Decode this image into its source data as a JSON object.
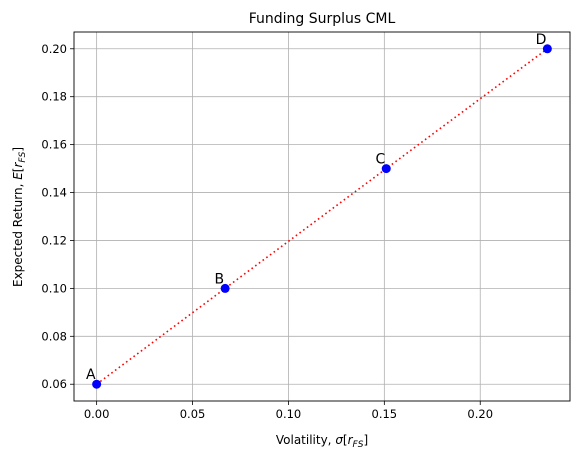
{
  "chart_data": {
    "type": "scatter",
    "title": "Funding Surplus CML",
    "xlabel": {
      "prefix": "Volatility, ",
      "sigma": "σ",
      "open": "[",
      "r": "r",
      "sub": "FS",
      "close": "]"
    },
    "ylabel": {
      "prefix": "Expected Return, ",
      "E": "E",
      "open": "[",
      "r": "r",
      "sub": "FS",
      "close": "]"
    },
    "xlim": [
      -0.0118,
      0.2468
    ],
    "ylim": [
      0.053,
      0.207
    ],
    "x_ticks": [
      0.0,
      0.05,
      0.1,
      0.15,
      0.2
    ],
    "x_tick_labels": [
      "0.00",
      "0.05",
      "0.10",
      "0.15",
      "0.20"
    ],
    "y_ticks": [
      0.06,
      0.08,
      0.1,
      0.12,
      0.14,
      0.16,
      0.18,
      0.2
    ],
    "y_tick_labels": [
      "0.06",
      "0.08",
      "0.10",
      "0.12",
      "0.14",
      "0.16",
      "0.18",
      "0.20"
    ],
    "grid": true,
    "points": [
      {
        "label": "A",
        "x": 0.0,
        "y": 0.06
      },
      {
        "label": "B",
        "x": 0.067,
        "y": 0.1
      },
      {
        "label": "C",
        "x": 0.151,
        "y": 0.15
      },
      {
        "label": "D",
        "x": 0.235,
        "y": 0.2
      }
    ],
    "line": {
      "style": "dotted",
      "color": "#ff0000",
      "through": "points"
    },
    "point_color": "#0000ff"
  }
}
